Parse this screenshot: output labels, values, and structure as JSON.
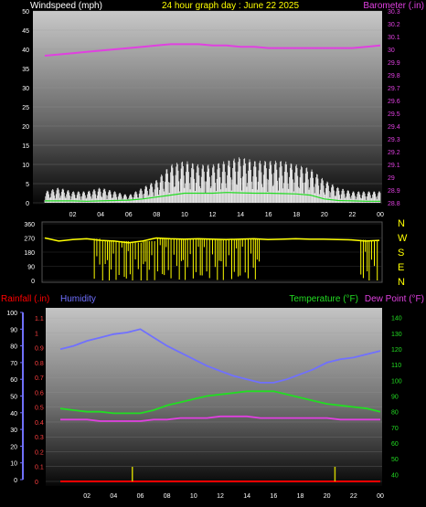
{
  "chart_data": [
    {
      "type": "line",
      "title": "24 hour graph day : June 22 2025",
      "left_label": "Windspeed (mph)",
      "right_label": "Barometer (.in)",
      "x_ticks": [
        "02",
        "04",
        "06",
        "08",
        "10",
        "12",
        "14",
        "16",
        "18",
        "20",
        "22",
        "00"
      ],
      "y_left_ticks": [
        "0",
        "5",
        "10",
        "15",
        "20",
        "25",
        "30",
        "35",
        "40",
        "45",
        "50"
      ],
      "y_right_ticks": [
        "28.8",
        "28.9",
        "29",
        "29.1",
        "29.2",
        "29.3",
        "29.4",
        "29.5",
        "29.6",
        "29.7",
        "29.8",
        "29.9",
        "30",
        "30.1",
        "30.2",
        "30.3"
      ],
      "ylim_left": [
        0,
        50
      ],
      "ylim_right": [
        28.8,
        30.3
      ],
      "series": [
        {
          "key": "barometer",
          "color": "#e040e0",
          "axis": "right",
          "x": [
            0,
            1,
            2,
            3,
            4,
            5,
            6,
            7,
            8,
            9,
            10,
            11,
            12,
            13,
            14,
            15,
            16,
            17,
            18,
            19,
            20,
            21,
            22,
            23,
            24
          ],
          "values": [
            29.95,
            29.96,
            29.97,
            29.98,
            29.99,
            30.0,
            30.01,
            30.02,
            30.03,
            30.04,
            30.04,
            30.04,
            30.03,
            30.03,
            30.02,
            30.02,
            30.01,
            30.01,
            30.01,
            30.01,
            30.01,
            30.01,
            30.01,
            30.02,
            30.03
          ]
        },
        {
          "key": "windspeed_avg",
          "color": "#22dd22",
          "axis": "left",
          "x": [
            0,
            1,
            2,
            3,
            4,
            5,
            6,
            7,
            8,
            9,
            10,
            11,
            12,
            13,
            14,
            15,
            16,
            17,
            18,
            19,
            20,
            21,
            22,
            23,
            24
          ],
          "values": [
            0.5,
            0.5,
            0.5,
            0.4,
            0.5,
            0.6,
            0.7,
            1,
            1.5,
            2,
            2.5,
            2.5,
            2.5,
            2.7,
            2.6,
            2.5,
            2.5,
            2.4,
            2.3,
            2,
            1,
            0.6,
            0.5,
            0.4,
            0.4
          ]
        },
        {
          "key": "windspeed_gust",
          "color": "#ffffff",
          "axis": "left",
          "x": [
            0,
            1,
            2,
            3,
            4,
            5,
            6,
            7,
            8,
            9,
            10,
            11,
            12,
            13,
            14,
            15,
            16,
            17,
            18,
            19,
            20,
            21,
            22,
            23,
            24
          ],
          "values": [
            3,
            4,
            3,
            3,
            4,
            3,
            2,
            4,
            6,
            10,
            11,
            10,
            10,
            11,
            12,
            11,
            11,
            11,
            10,
            9,
            6,
            4,
            3,
            3,
            3
          ]
        }
      ]
    },
    {
      "type": "line",
      "y_left_ticks": [
        "0",
        "90",
        "180",
        "270",
        "360"
      ],
      "compass_labels": [
        "N",
        "W",
        "S",
        "E",
        "N"
      ],
      "ylim": [
        0,
        360
      ],
      "series": [
        {
          "key": "wind_direction",
          "color": "#ffff00",
          "x": [
            0,
            1,
            2,
            3,
            4,
            5,
            6,
            7,
            8,
            9,
            10,
            11,
            12,
            13,
            14,
            15,
            16,
            17,
            18,
            19,
            20,
            21,
            22,
            23,
            24
          ],
          "values": [
            270,
            250,
            260,
            265,
            255,
            250,
            240,
            250,
            270,
            265,
            262,
            265,
            262,
            260,
            262,
            265,
            260,
            262,
            265,
            262,
            262,
            260,
            258,
            250,
            255
          ]
        }
      ]
    },
    {
      "type": "line",
      "left_labels": [
        "Rainfall (.in)",
        "Humidity"
      ],
      "right_labels": [
        "Temperature (°F)",
        "Dew Point (°F)"
      ],
      "x_ticks": [
        "02",
        "04",
        "06",
        "08",
        "10",
        "12",
        "14",
        "16",
        "18",
        "20",
        "22",
        "00"
      ],
      "y_humidity_ticks": [
        "0",
        "10",
        "20",
        "30",
        "40",
        "50",
        "60",
        "70",
        "80",
        "90",
        "100"
      ],
      "y_rain_ticks": [
        "0",
        "0.1",
        "0.2",
        "0.3",
        "0.4",
        "0.5",
        "0.6",
        "0.7",
        "0.8",
        "0.9",
        "1",
        "1.1"
      ],
      "y_temp_ticks": [
        "40",
        "50",
        "60",
        "70",
        "80",
        "90",
        "100",
        "110",
        "120",
        "130",
        "140"
      ],
      "ylim_humidity": [
        0,
        100
      ],
      "ylim_rain": [
        0,
        1.15
      ],
      "ylim_temp": [
        35,
        145
      ],
      "series": [
        {
          "key": "humidity",
          "color": "#7070ff",
          "axis": "humidity",
          "x": [
            0,
            1,
            2,
            3,
            4,
            5,
            6,
            7,
            8,
            9,
            10,
            11,
            12,
            13,
            14,
            15,
            16,
            17,
            18,
            19,
            20,
            21,
            22,
            23,
            24
          ],
          "values": [
            78,
            80,
            83,
            85,
            87,
            88,
            90,
            85,
            80,
            76,
            72,
            68,
            65,
            62,
            60,
            58,
            58,
            60,
            63,
            66,
            70,
            72,
            73,
            75,
            77
          ]
        },
        {
          "key": "temperature",
          "color": "#22dd22",
          "axis": "temp",
          "x": [
            0,
            1,
            2,
            3,
            4,
            5,
            6,
            7,
            8,
            9,
            10,
            11,
            12,
            13,
            14,
            15,
            16,
            17,
            18,
            19,
            20,
            21,
            22,
            23,
            24
          ],
          "values": [
            82,
            81,
            80,
            80,
            79,
            79,
            79,
            81,
            84,
            86,
            88,
            90,
            91,
            92,
            93,
            93,
            93,
            91,
            89,
            87,
            85,
            84,
            83,
            82,
            80
          ]
        },
        {
          "key": "dew_point",
          "color": "#e040e0",
          "axis": "temp",
          "x": [
            0,
            1,
            2,
            3,
            4,
            5,
            6,
            7,
            8,
            9,
            10,
            11,
            12,
            13,
            14,
            15,
            16,
            17,
            18,
            19,
            20,
            21,
            22,
            23,
            24
          ],
          "values": [
            75,
            75,
            75,
            74,
            74,
            74,
            74,
            75,
            75,
            76,
            76,
            76,
            77,
            77,
            77,
            76,
            76,
            76,
            76,
            76,
            76,
            75,
            75,
            75,
            75
          ]
        },
        {
          "key": "rainfall",
          "color": "#ff0000",
          "axis": "rain",
          "x": [
            0,
            24
          ],
          "values": [
            0,
            0
          ]
        },
        {
          "key": "rain_marks",
          "color": "#cccc00",
          "axis": "rain",
          "x": [
            5.4,
            20.6
          ],
          "values": [
            0.02,
            0.02
          ]
        }
      ]
    }
  ],
  "colors": {
    "wind_label": "#ffffff",
    "title": "#ffff00",
    "barometer_axis": "#e040e0",
    "compass": "#ffff00",
    "rain_axis": "#ff0000",
    "humidity_axis": "#7070ff",
    "temp_axis": "#22dd22",
    "dew_axis": "#e040e0"
  }
}
